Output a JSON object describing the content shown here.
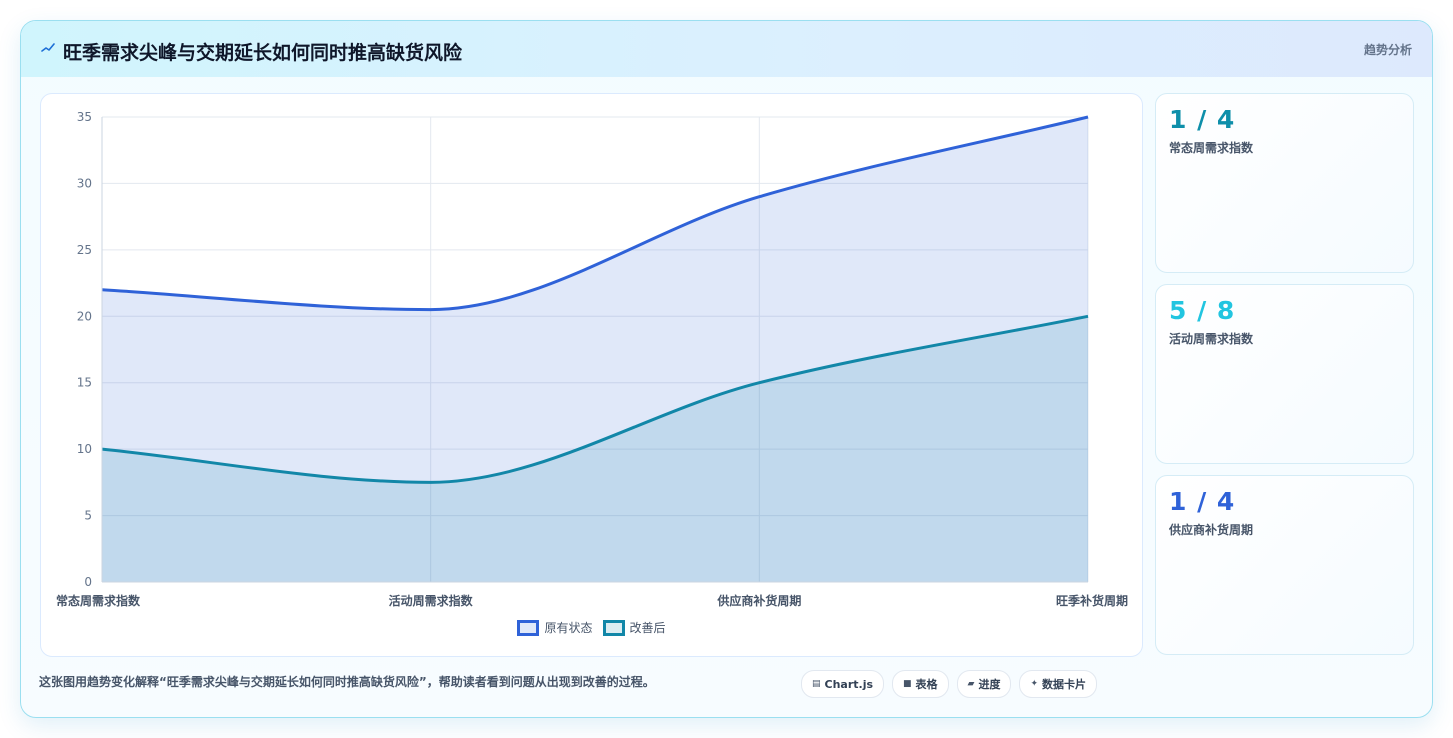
{
  "header": {
    "title": "旺季需求尖峰与交期延长如何同时推高缺货风险",
    "tag": "趋势分析",
    "icon": "spark-line-icon"
  },
  "chart_data": {
    "type": "area",
    "categories": [
      "常态周需求指数",
      "活动周需求指数",
      "供应商补货周期",
      "旺季补货周期"
    ],
    "series": [
      {
        "name": "原有状态",
        "values": [
          22,
          20.5,
          29,
          35
        ],
        "color": "#2f62d8"
      },
      {
        "name": "改善后",
        "values": [
          10,
          7.5,
          15,
          20
        ],
        "color": "#1287a8"
      }
    ],
    "ylim": [
      0,
      35
    ],
    "yticks": [
      0,
      5,
      10,
      15,
      20,
      25,
      30,
      35
    ],
    "grid": true,
    "legend": "bottom",
    "title": "",
    "xlabel": "",
    "ylabel": ""
  },
  "stats": [
    {
      "value": "1 / 4",
      "label": "常态周需求指数",
      "color": "#0e8faa"
    },
    {
      "value": "5 / 8",
      "label": "活动周需求指数",
      "color": "#22c5e0"
    },
    {
      "value": "1 / 4",
      "label": "供应商补货周期",
      "color": "#2f62d8"
    }
  ],
  "footer": {
    "text": "这张图用趋势变化解释“旺季需求尖峰与交期延长如何同时推高缺货风险”，帮助读者看到问题从出现到改善的过程。",
    "pills": [
      {
        "icon": "▤",
        "label": "Chart.js"
      },
      {
        "icon": "■",
        "label": "表格"
      },
      {
        "icon": "▰",
        "label": "进度"
      },
      {
        "icon": "✦",
        "label": "数据卡片"
      }
    ]
  }
}
